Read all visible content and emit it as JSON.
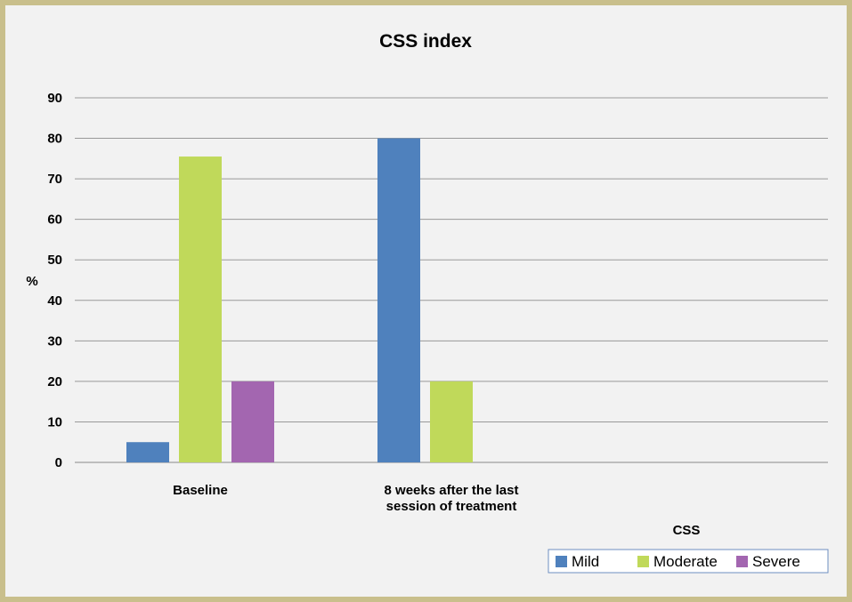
{
  "chart_data": {
    "type": "bar",
    "title": "CSS index",
    "xlabel": "CSS",
    "ylabel": "%",
    "ylim": [
      0,
      90
    ],
    "yticks": [
      0,
      10,
      20,
      30,
      40,
      50,
      60,
      70,
      80,
      90
    ],
    "grid": true,
    "legend_position": "bottom-right",
    "categories": [
      [
        "Baseline"
      ],
      [
        "8 weeks after the last",
        "session of treatment"
      ],
      [
        ""
      ]
    ],
    "series": [
      {
        "name": "Mild",
        "color": "#4f81bd",
        "values": [
          5,
          80,
          0
        ]
      },
      {
        "name": "Moderate",
        "color": "#c0d95a",
        "values": [
          75.5,
          20,
          0
        ]
      },
      {
        "name": "Severe",
        "color": "#a366b0",
        "values": [
          20,
          0,
          0
        ]
      }
    ]
  }
}
